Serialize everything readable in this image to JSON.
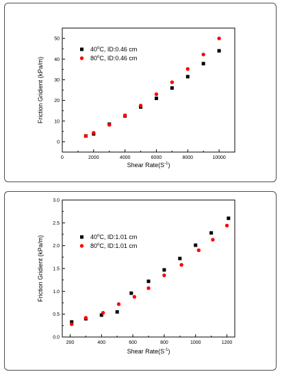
{
  "chart_data": [
    {
      "type": "scatter",
      "xlabel_prefix": "Shear Rate(S",
      "xlabel_sup": "-1",
      "xlabel_suffix": ")",
      "ylabel": "Friction Gridient (kPa/m)",
      "xlim": [
        0,
        11000
      ],
      "ylim": [
        -5,
        55
      ],
      "xticks": [
        0,
        2000,
        4000,
        6000,
        8000,
        10000
      ],
      "yticks": [
        0,
        10,
        20,
        30,
        40,
        50
      ],
      "ytick_decimals": 0,
      "legend_position": "upper-left",
      "series": [
        {
          "name_prefix": "40",
          "name_sup": "o",
          "name_suffix": "C, ID:0.46 cm",
          "marker": "square",
          "color": "#000000",
          "x": [
            1500,
            2000,
            3000,
            4000,
            5000,
            6000,
            7000,
            8000,
            9000,
            10000
          ],
          "y": [
            2.8,
            3.8,
            8.5,
            12.5,
            16.8,
            21.0,
            26.0,
            31.5,
            37.8,
            44.0
          ]
        },
        {
          "name_prefix": "80",
          "name_sup": "o",
          "name_suffix": "C, ID:0.46 cm",
          "marker": "circle",
          "color": "#ff0000",
          "x": [
            1500,
            2000,
            3000,
            4000,
            5000,
            6000,
            7000,
            8000,
            9000,
            10000
          ],
          "y": [
            2.8,
            4.3,
            8.2,
            12.8,
            17.5,
            23.0,
            28.8,
            35.2,
            42.2,
            50.0
          ]
        }
      ]
    },
    {
      "type": "scatter",
      "xlabel_prefix": "Shear Rate(S",
      "xlabel_sup": "-1",
      "xlabel_suffix": ")",
      "ylabel": "Friction Gridient (kPa/m)",
      "xlim": [
        150,
        1250
      ],
      "ylim": [
        0,
        3.0
      ],
      "xticks": [
        200,
        400,
        600,
        800,
        1000,
        1200
      ],
      "yticks": [
        0.0,
        0.5,
        1.0,
        1.5,
        2.0,
        2.5,
        3.0
      ],
      "ytick_decimals": 1,
      "legend_position": "left",
      "series": [
        {
          "name_prefix": "40",
          "name_sup": "o",
          "name_suffix": "C, ID:1.01 cm",
          "marker": "square",
          "color": "#000000",
          "x": [
            210,
            300,
            400,
            500,
            590,
            700,
            800,
            900,
            1000,
            1100,
            1210
          ],
          "y": [
            0.33,
            0.4,
            0.48,
            0.55,
            0.96,
            1.22,
            1.47,
            1.72,
            2.01,
            2.28,
            2.6
          ]
        },
        {
          "name_prefix": "80",
          "name_sup": "o",
          "name_suffix": "C, ID:1.01 cm",
          "marker": "circle",
          "color": "#ff0000",
          "x": [
            210,
            300,
            410,
            510,
            610,
            700,
            800,
            910,
            1020,
            1110,
            1200
          ],
          "y": [
            0.28,
            0.42,
            0.53,
            0.72,
            0.88,
            1.07,
            1.35,
            1.58,
            1.9,
            2.13,
            2.44
          ]
        }
      ]
    }
  ]
}
